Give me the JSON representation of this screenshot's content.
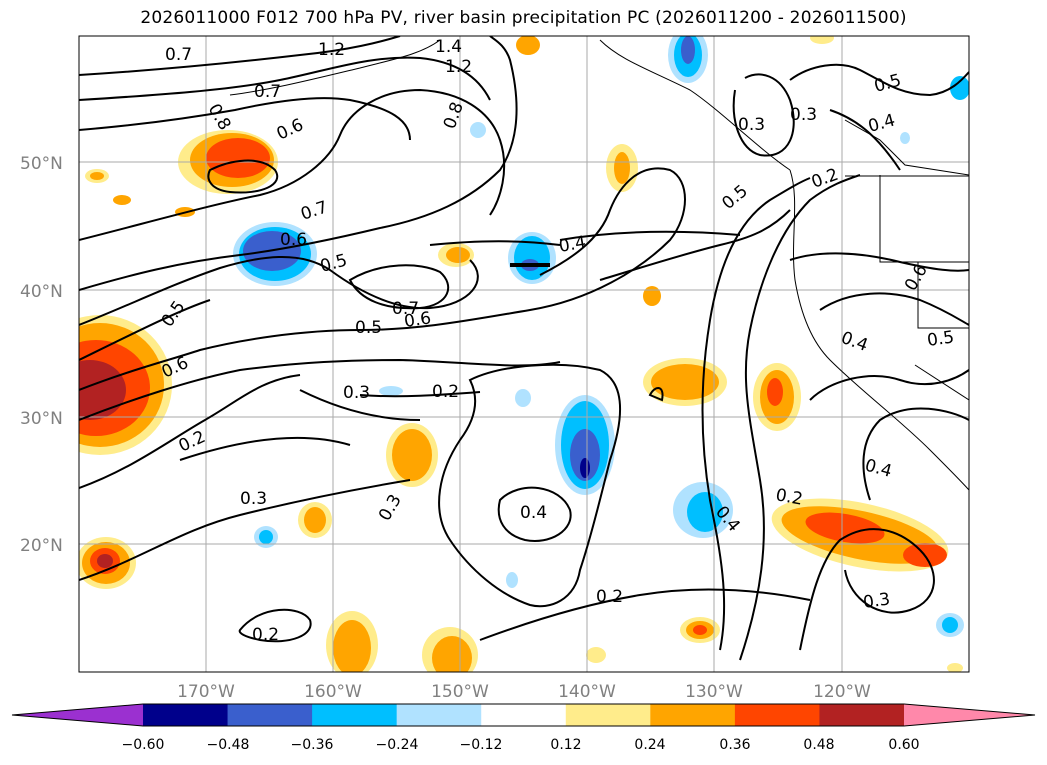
{
  "title": "2026011000 F012 700 hPa PV, river basin precipitation PC (2026011200 - 2026011500)",
  "map": {
    "lat_labels": [
      "50°N",
      "40°N",
      "30°N",
      "20°N"
    ],
    "lon_labels": [
      "170°W",
      "160°W",
      "150°W",
      "140°W",
      "130°W",
      "120°W"
    ],
    "contour_labels": [
      "0.7",
      "1.2",
      "1.4",
      "1.2",
      "0.8",
      "0.7",
      "0.6",
      "0.8",
      "0.3",
      "0.3",
      "0.5",
      "0.4",
      "0.2",
      "0.7",
      "0.6",
      "0.5",
      "0.4",
      "0.7",
      "0.6",
      "0.5",
      "0.5",
      "0.6",
      "0.5",
      "0.3",
      "0.2",
      "0.6",
      "0.4",
      "0.5",
      "0.2",
      "0.3",
      "0.3",
      "0.4",
      "0.4",
      "0.2",
      "0.4",
      "0.2",
      "0.3",
      "0.2"
    ]
  },
  "colorbar": {
    "ticks": [
      "−0.60",
      "−0.48",
      "−0.36",
      "−0.24",
      "−0.12",
      "0.12",
      "0.24",
      "0.36",
      "0.48",
      "0.60"
    ],
    "colors": [
      "#9b30d0",
      "#00008b",
      "#3a5fcd",
      "#00bfff",
      "#b0e2ff",
      "#ffffff",
      "#ffec8b",
      "#ffa500",
      "#ff4500",
      "#b22222",
      "#ff88aa"
    ]
  }
}
